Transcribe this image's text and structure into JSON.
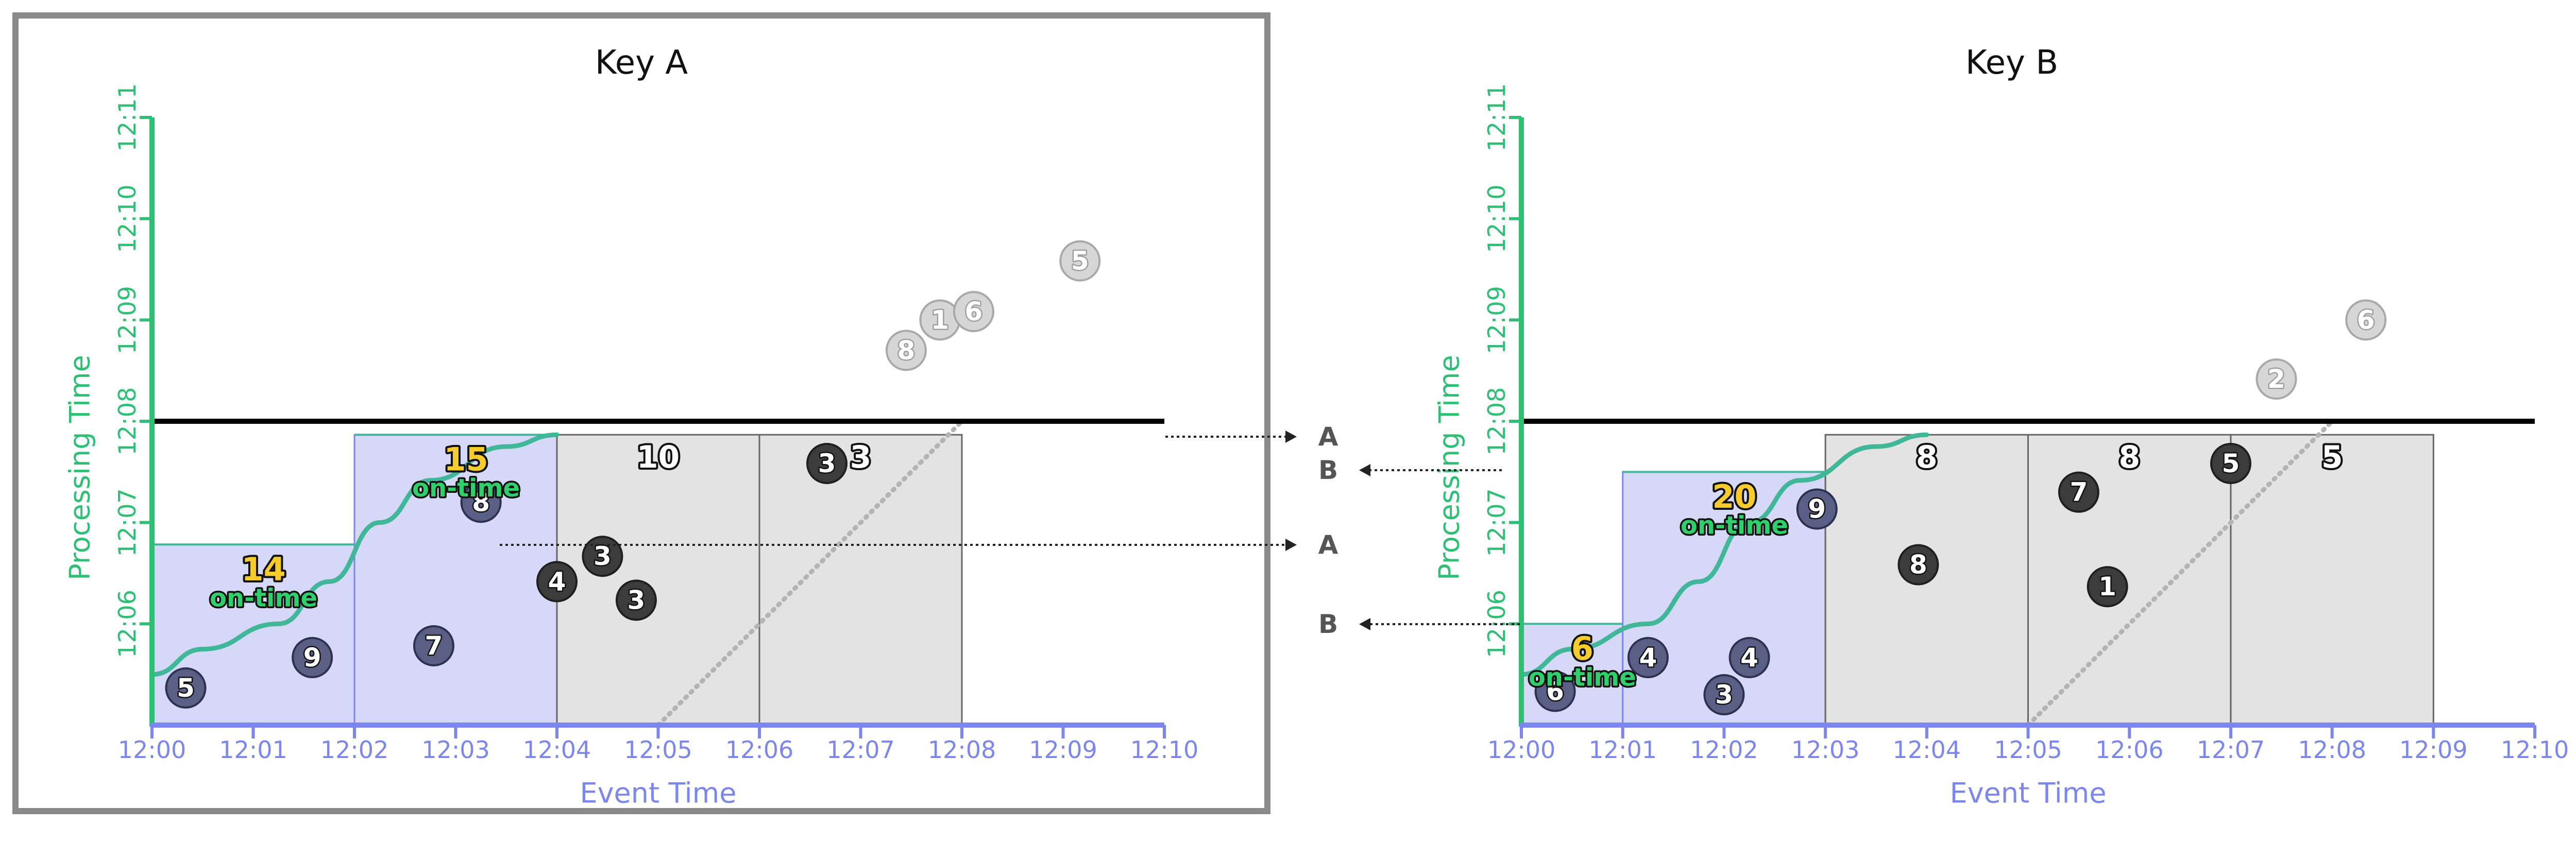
{
  "colors": {
    "event_axis": "#7b86ef",
    "processing_axis": "#2dbf73",
    "watermark": "#41b79a",
    "ontime_pane": "#d5d8f7",
    "late_pane": "#e3e3e3",
    "ontime_point": "#5a5f85",
    "late_point": "#3c3c3c",
    "dropped_point": "#d6d6d6",
    "ontime_value": "#f6cb2c",
    "ontime_label": "#2fcf6b",
    "frame": "#8a8a8a"
  },
  "arrow_labels": [
    {
      "key": "A",
      "text": "A"
    },
    {
      "key": "B",
      "text": "B"
    },
    {
      "key": "A",
      "text": "A"
    },
    {
      "key": "B",
      "text": "B"
    }
  ],
  "chart_data": [
    {
      "type": "scatter",
      "title": "Key A",
      "xlabel": "Event Time",
      "ylabel": "Processing Time",
      "x_ticks": [
        "12:00",
        "12:01",
        "12:02",
        "12:03",
        "12:04",
        "12:05",
        "12:06",
        "12:07",
        "12:08",
        "12:09",
        "12:10"
      ],
      "y_ticks": [
        "12:06",
        "12:07",
        "12:08",
        "12:09",
        "12:10",
        "12:11"
      ],
      "xlim": [
        "12:00",
        "12:10"
      ],
      "ylim": [
        "12:05",
        "12:11"
      ],
      "processing_time_now": "12:08",
      "dropped_line_start": "12:05",
      "watermark": [
        [
          "12:00",
          "12:05:30"
        ],
        [
          "12:00:30",
          "12:05:45"
        ],
        [
          "12:01:15",
          "12:06:00"
        ],
        [
          "12:01:45",
          "12:06:25"
        ],
        [
          "12:02:15",
          "12:07:00"
        ],
        [
          "12:02:45",
          "12:07:25"
        ],
        [
          "12:03:30",
          "12:07:45"
        ],
        [
          "12:04:00",
          "12:07:52"
        ]
      ],
      "panes": [
        {
          "start": "12:00",
          "end": "12:02",
          "fired_at": "12:06:47",
          "status": "on-time",
          "value": "14",
          "label": "on-time"
        },
        {
          "start": "12:02",
          "end": "12:04",
          "fired_at": "12:07:52",
          "status": "on-time",
          "value": "15",
          "label": "on-time"
        },
        {
          "start": "12:04",
          "end": "12:06",
          "fired_at": "12:07:52",
          "status": "late",
          "value": "10",
          "label": ""
        },
        {
          "start": "12:06",
          "end": "12:08",
          "fired_at": "12:07:52",
          "status": "late",
          "value": "3",
          "label": ""
        }
      ],
      "points": [
        {
          "event": "12:00:20",
          "processing": "12:05:22",
          "value": "5",
          "status": "on-time"
        },
        {
          "event": "12:01:35",
          "processing": "12:05:40",
          "value": "9",
          "status": "on-time"
        },
        {
          "event": "12:02:47",
          "processing": "12:05:47",
          "value": "7",
          "status": "on-time"
        },
        {
          "event": "12:03:15",
          "processing": "12:07:12",
          "value": "8",
          "status": "on-time"
        },
        {
          "event": "12:04:00",
          "processing": "12:06:25",
          "value": "4",
          "status": "late"
        },
        {
          "event": "12:04:27",
          "processing": "12:06:40",
          "value": "3",
          "status": "late"
        },
        {
          "event": "12:04:47",
          "processing": "12:06:14",
          "value": "3",
          "status": "late"
        },
        {
          "event": "12:06:40",
          "processing": "12:07:35",
          "value": "3",
          "status": "late"
        },
        {
          "event": "12:07:27",
          "processing": "12:08:42",
          "value": "8",
          "status": "dropped"
        },
        {
          "event": "12:07:47",
          "processing": "12:09:00",
          "value": "1",
          "status": "dropped"
        },
        {
          "event": "12:08:07",
          "processing": "12:09:05",
          "value": "6",
          "status": "dropped"
        },
        {
          "event": "12:09:10",
          "processing": "12:09:35",
          "value": "5",
          "status": "dropped"
        }
      ]
    },
    {
      "type": "scatter",
      "title": "Key B",
      "xlabel": "Event Time",
      "ylabel": "Processing Time",
      "x_ticks": [
        "12:00",
        "12:01",
        "12:02",
        "12:03",
        "12:04",
        "12:05",
        "12:06",
        "12:07",
        "12:08",
        "12:09",
        "12:10"
      ],
      "y_ticks": [
        "12:06",
        "12:07",
        "12:08",
        "12:09",
        "12:10",
        "12:11"
      ],
      "xlim": [
        "12:00",
        "12:10"
      ],
      "ylim": [
        "12:05",
        "12:11"
      ],
      "processing_time_now": "12:08",
      "dropped_line_start": "12:05",
      "watermark": [
        [
          "12:00",
          "12:05:30"
        ],
        [
          "12:00:30",
          "12:05:45"
        ],
        [
          "12:01:15",
          "12:06:00"
        ],
        [
          "12:01:45",
          "12:06:25"
        ],
        [
          "12:02:15",
          "12:07:00"
        ],
        [
          "12:02:45",
          "12:07:25"
        ],
        [
          "12:03:30",
          "12:07:45"
        ],
        [
          "12:04:00",
          "12:07:52"
        ]
      ],
      "panes": [
        {
          "start": "12:00",
          "end": "12:01",
          "fired_at": "12:06:00",
          "status": "on-time",
          "value": "6",
          "label": "on-time"
        },
        {
          "start": "12:01",
          "end": "12:03",
          "fired_at": "12:07:30",
          "status": "on-time",
          "value": "20",
          "label": "on-time"
        },
        {
          "start": "12:03",
          "end": "12:05",
          "fired_at": "12:07:52",
          "status": "late",
          "value": "8",
          "label": ""
        },
        {
          "start": "12:05",
          "end": "12:07",
          "fired_at": "12:07:52",
          "status": "late",
          "value": "8",
          "label": ""
        },
        {
          "start": "12:07",
          "end": "12:09",
          "fired_at": "12:07:52",
          "status": "late",
          "value": "5",
          "label": ""
        }
      ],
      "points": [
        {
          "event": "12:00:20",
          "processing": "12:05:20",
          "value": "6",
          "status": "on-time"
        },
        {
          "event": "12:01:15",
          "processing": "12:05:40",
          "value": "4",
          "status": "on-time"
        },
        {
          "event": "12:02:00",
          "processing": "12:05:18",
          "value": "3",
          "status": "on-time"
        },
        {
          "event": "12:02:15",
          "processing": "12:05:40",
          "value": "4",
          "status": "on-time"
        },
        {
          "event": "12:02:55",
          "processing": "12:07:08",
          "value": "9",
          "status": "on-time"
        },
        {
          "event": "12:03:55",
          "processing": "12:06:35",
          "value": "8",
          "status": "late"
        },
        {
          "event": "12:05:30",
          "processing": "12:07:18",
          "value": "7",
          "status": "late"
        },
        {
          "event": "12:05:47",
          "processing": "12:06:22",
          "value": "1",
          "status": "late"
        },
        {
          "event": "12:07:00",
          "processing": "12:07:35",
          "value": "5",
          "status": "late"
        },
        {
          "event": "12:07:27",
          "processing": "12:08:25",
          "value": "2",
          "status": "dropped"
        },
        {
          "event": "12:08:20",
          "processing": "12:09:00",
          "value": "6",
          "status": "dropped"
        }
      ]
    }
  ]
}
